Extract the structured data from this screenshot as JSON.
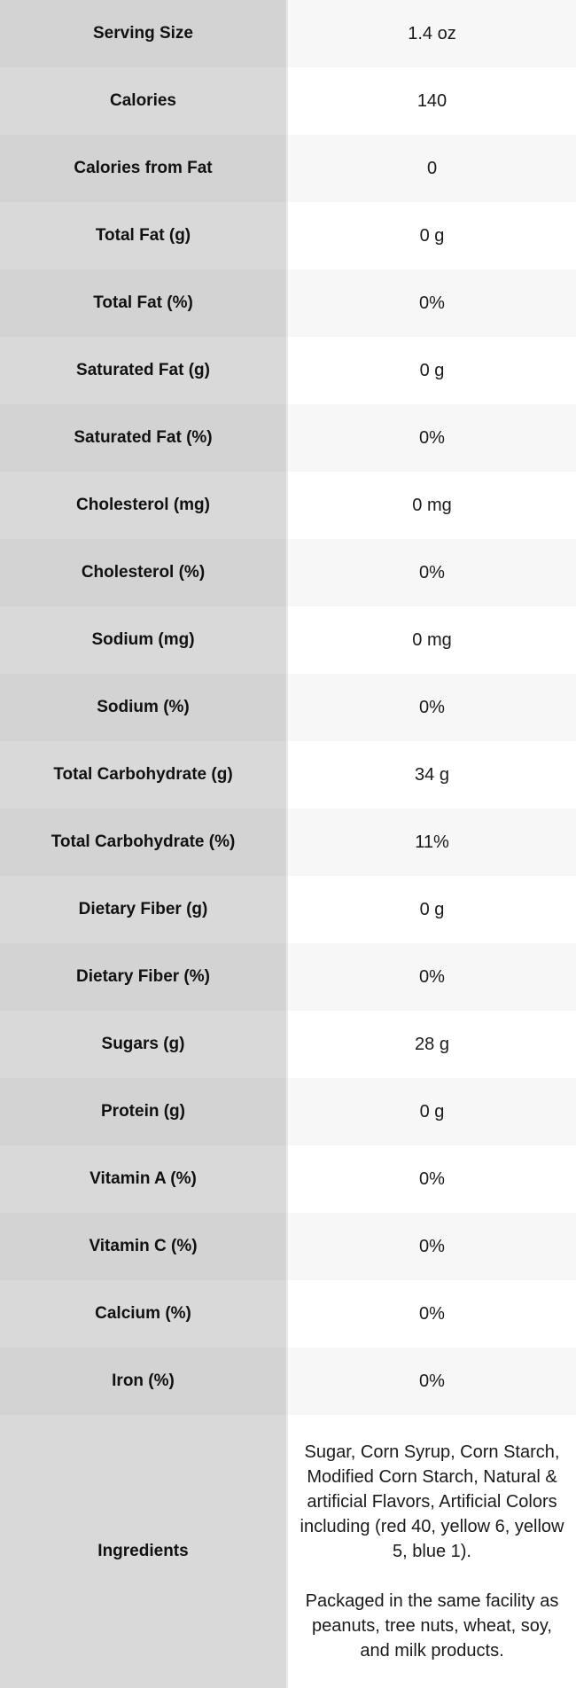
{
  "table": {
    "rows": [
      {
        "label": "Serving Size",
        "value": "1.4 oz"
      },
      {
        "label": "Calories",
        "value": "140"
      },
      {
        "label": "Calories from Fat",
        "value": "0"
      },
      {
        "label": "Total Fat (g)",
        "value": "0 g"
      },
      {
        "label": "Total Fat (%)",
        "value": "0%"
      },
      {
        "label": "Saturated Fat (g)",
        "value": "0 g"
      },
      {
        "label": "Saturated Fat (%)",
        "value": "0%"
      },
      {
        "label": "Cholesterol (mg)",
        "value": "0 mg"
      },
      {
        "label": "Cholesterol (%)",
        "value": "0%"
      },
      {
        "label": "Sodium (mg)",
        "value": "0 mg"
      },
      {
        "label": "Sodium (%)",
        "value": "0%"
      },
      {
        "label": "Total Carbohydrate (g)",
        "value": "34 g"
      },
      {
        "label": "Total Carbohydrate (%)",
        "value": "11%"
      },
      {
        "label": "Dietary Fiber (g)",
        "value": "0 g"
      },
      {
        "label": "Dietary Fiber (%)",
        "value": "0%"
      },
      {
        "label": "Sugars (g)",
        "value": "28 g"
      },
      {
        "label": "Protein (g)",
        "value": "0 g"
      },
      {
        "label": "Vitamin A (%)",
        "value": "0%"
      },
      {
        "label": "Vitamin C (%)",
        "value": "0%"
      },
      {
        "label": "Calcium (%)",
        "value": "0%"
      },
      {
        "label": "Iron (%)",
        "value": "0%"
      }
    ],
    "ingredients": {
      "label": "Ingredients",
      "paragraph1": "Sugar, Corn Syrup, Corn Starch, Modified Corn Starch, Natural & artificial Flavors, Artificial Colors including (red 40, yellow 6, yellow 5, blue 1).",
      "paragraph2": "Packaged in the same facility as peanuts, tree nuts, wheat, soy, and milk products."
    }
  },
  "colors": {
    "label_bg_odd": "#d3d3d3",
    "label_bg_even": "#d9d9d9",
    "value_bg_odd": "#f7f7f7",
    "value_bg_even": "#ffffff",
    "text": "#1a1a1a"
  }
}
